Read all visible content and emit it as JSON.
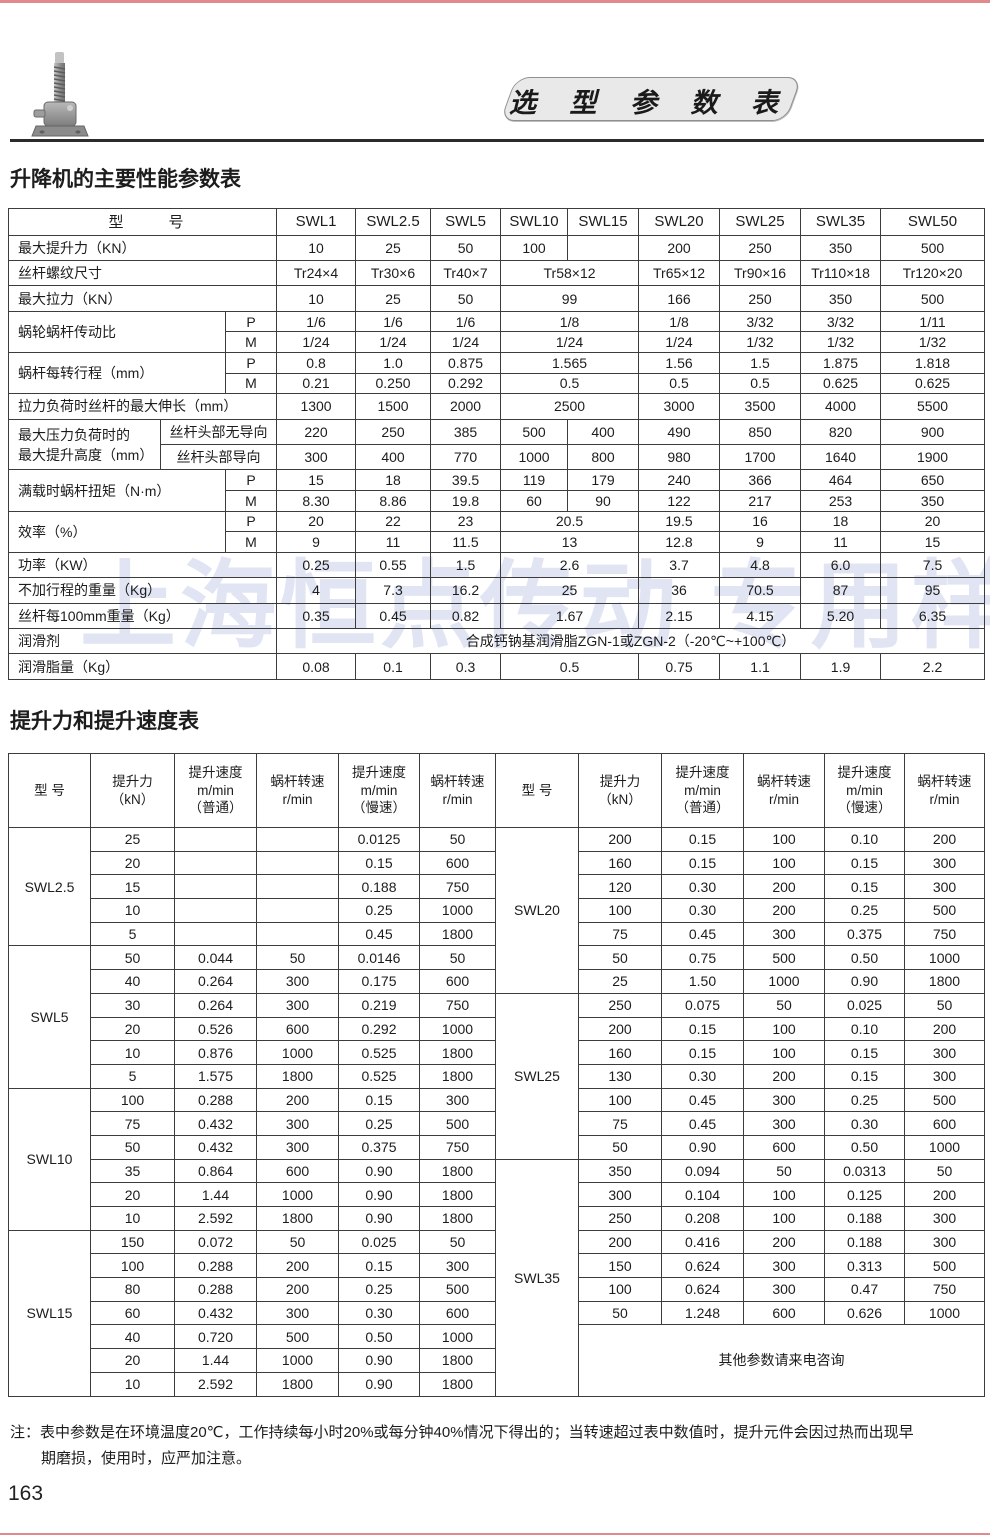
{
  "page": {
    "banner": "选 型 参 数 表",
    "watermark": "上海恒点传动 专用样本",
    "page_number": "163",
    "note": {
      "prefix": "注：",
      "lines": [
        "表中参数是在环境温度20℃，工作持续每小时20%或每分钟40%情况下得出的；当转速超过表中数值时，提升元件会因过热而出现早",
        "期磨损，使用时，应严加注意。"
      ]
    }
  },
  "table1": {
    "title": "升降机的主要性能参数表",
    "header_label": "型　　　号",
    "models": [
      "SWL1",
      "SWL2.5",
      "SWL5",
      "SWL10",
      "SWL15",
      "SWL20",
      "SWL25",
      "SWL35",
      "SWL50"
    ],
    "rows": [
      {
        "label": "最大提升力（KN）",
        "lc": 3,
        "cells": [
          "10",
          "25",
          "50",
          "100",
          "",
          "200",
          "250",
          "350",
          "500"
        ]
      },
      {
        "label": "丝杆螺纹尺寸",
        "lc": 3,
        "cells": [
          "Tr24×4",
          "Tr30×6",
          "Tr40×7",
          {
            "t": "Tr58×12",
            "c": 2
          },
          "Tr65×12",
          "Tr90×16",
          "Tr110×18",
          "Tr120×20"
        ]
      },
      {
        "label": "最大拉力（KN）",
        "lc": 3,
        "cells": [
          "10",
          "25",
          "50",
          {
            "t": "99",
            "c": 2
          },
          "166",
          "250",
          "350",
          "500"
        ]
      },
      {
        "label": "蜗轮蜗杆传动比",
        "lc": 2,
        "lr": 2,
        "sub": "P",
        "cells": [
          "1/6",
          "1/6",
          "1/6",
          {
            "t": "1/8",
            "c": 2
          },
          "1/8",
          "3/32",
          "3/32",
          "1/11"
        ]
      },
      {
        "sub": "M",
        "cells": [
          "1/24",
          "1/24",
          "1/24",
          {
            "t": "1/24",
            "c": 2
          },
          "1/24",
          "1/32",
          "1/32",
          "1/32"
        ]
      },
      {
        "label": "蜗杆每转行程（mm）",
        "lc": 2,
        "lr": 2,
        "sub": "P",
        "cells": [
          "0.8",
          "1.0",
          "0.875",
          {
            "t": "1.565",
            "c": 2
          },
          "1.56",
          "1.5",
          "1.875",
          "1.818"
        ]
      },
      {
        "sub": "M",
        "cells": [
          "0.21",
          "0.250",
          "0.292",
          {
            "t": "0.5",
            "c": 2
          },
          "0.5",
          "0.5",
          "0.625",
          "0.625"
        ]
      },
      {
        "label": "拉力负荷时丝杆的最大伸长（mm）",
        "lc": 3,
        "cells": [
          "1300",
          "1500",
          "2000",
          {
            "t": "2500",
            "c": 2
          },
          "3000",
          "3500",
          "4000",
          "5500"
        ]
      },
      {
        "label": "最大压力负荷时的\n最大提升高度（mm）",
        "lc": 1,
        "lr": 2,
        "sub": "丝杆头部无导向",
        "sc": 2,
        "cells": [
          "220",
          "250",
          "385",
          "500",
          "400",
          "490",
          "850",
          "820",
          "900"
        ]
      },
      {
        "sub": "丝杆头部导向",
        "sc": 2,
        "cells": [
          "300",
          "400",
          "770",
          "1000",
          "800",
          "980",
          "1700",
          "1640",
          "1900"
        ]
      },
      {
        "label": "满载时蜗杆扭矩（N·m）",
        "lc": 2,
        "lr": 2,
        "sub": "P",
        "cells": [
          "15",
          "18",
          "39.5",
          "119",
          "179",
          "240",
          "366",
          "464",
          "650"
        ]
      },
      {
        "sub": "M",
        "cells": [
          "8.30",
          "8.86",
          "19.8",
          "60",
          "90",
          "122",
          "217",
          "253",
          "350"
        ]
      },
      {
        "label": "效率（%）",
        "lc": 2,
        "lr": 2,
        "sub": "P",
        "cells": [
          "20",
          "22",
          "23",
          {
            "t": "20.5",
            "c": 2
          },
          "19.5",
          "16",
          "18",
          "20"
        ]
      },
      {
        "sub": "M",
        "cells": [
          "9",
          "11",
          "11.5",
          {
            "t": "13",
            "c": 2
          },
          "12.8",
          "9",
          "11",
          "15"
        ]
      },
      {
        "label": "功率（KW）",
        "lc": 3,
        "cells": [
          "0.25",
          "0.55",
          "1.5",
          {
            "t": "2.6",
            "c": 2
          },
          "3.7",
          "4.8",
          "6.0",
          "7.5"
        ]
      },
      {
        "label": "不加行程的重量（Kg）",
        "lc": 3,
        "cells": [
          "4",
          "7.3",
          "16.2",
          {
            "t": "25",
            "c": 2
          },
          "36",
          "70.5",
          "87",
          "95"
        ]
      },
      {
        "label": "丝杆每100mm重量（Kg）",
        "lc": 3,
        "cells": [
          "0.35",
          "0.45",
          "0.82",
          {
            "t": "1.67",
            "c": 2
          },
          "2.15",
          "4.15",
          "5.20",
          "6.35"
        ]
      },
      {
        "label": "润滑剂",
        "lc": 3,
        "cells": [
          {
            "t": "合成钙钠基润滑脂ZGN-1或ZGN-2（-20℃~+100℃）",
            "c": 9
          }
        ]
      },
      {
        "label": "润滑脂量（Kg）",
        "lc": 3,
        "cells": [
          "0.08",
          "0.1",
          "0.3",
          {
            "t": "0.5",
            "c": 2
          },
          "0.75",
          "1.1",
          "1.9",
          "2.2"
        ]
      }
    ]
  },
  "table2": {
    "title": "提升力和提升速度表",
    "columns": [
      "型 号",
      "提升力\n（kN）",
      "提升速度\nm/min\n（普通）",
      "蜗杆转速\nr/min",
      "提升速度\nm/min\n（慢速）",
      "蜗杆转速\nr/min"
    ],
    "total_rows": 24,
    "left_groups": [
      {
        "model": "SWL2.5",
        "rows": [
          [
            "25",
            "",
            "",
            "0.0125",
            "50"
          ],
          [
            "20",
            "",
            "",
            "0.15",
            "600"
          ],
          [
            "15",
            "",
            "",
            "0.188",
            "750"
          ],
          [
            "10",
            "",
            "",
            "0.25",
            "1000"
          ],
          [
            "5",
            "",
            "",
            "0.45",
            "1800"
          ]
        ]
      },
      {
        "model": "SWL5",
        "rows": [
          [
            "50",
            "0.044",
            "50",
            "0.0146",
            "50"
          ],
          [
            "40",
            "0.264",
            "300",
            "0.175",
            "600"
          ],
          [
            "30",
            "0.264",
            "300",
            "0.219",
            "750"
          ],
          [
            "20",
            "0.526",
            "600",
            "0.292",
            "1000"
          ],
          [
            "10",
            "0.876",
            "1000",
            "0.525",
            "1800"
          ],
          [
            "5",
            "1.575",
            "1800",
            "0.525",
            "1800"
          ]
        ]
      },
      {
        "model": "SWL10",
        "rows": [
          [
            "100",
            "0.288",
            "200",
            "0.15",
            "300"
          ],
          [
            "75",
            "0.432",
            "300",
            "0.25",
            "500"
          ],
          [
            "50",
            "0.432",
            "300",
            "0.375",
            "750"
          ],
          [
            "35",
            "0.864",
            "600",
            "0.90",
            "1800"
          ],
          [
            "20",
            "1.44",
            "1000",
            "0.90",
            "1800"
          ],
          [
            "10",
            "2.592",
            "1800",
            "0.90",
            "1800"
          ]
        ]
      },
      {
        "model": "SWL15",
        "rows": [
          [
            "150",
            "0.072",
            "50",
            "0.025",
            "50"
          ],
          [
            "100",
            "0.288",
            "200",
            "0.15",
            "300"
          ],
          [
            "80",
            "0.288",
            "200",
            "0.25",
            "500"
          ],
          [
            "60",
            "0.432",
            "300",
            "0.30",
            "600"
          ],
          [
            "40",
            "0.720",
            "500",
            "0.50",
            "1000"
          ],
          [
            "20",
            "1.44",
            "1000",
            "0.90",
            "1800"
          ],
          [
            "10",
            "2.592",
            "1800",
            "0.90",
            "1800"
          ]
        ]
      }
    ],
    "right_groups": [
      {
        "model": "SWL20",
        "rows": [
          [
            "200",
            "0.15",
            "100",
            "0.10",
            "200"
          ],
          [
            "160",
            "0.15",
            "100",
            "0.15",
            "300"
          ],
          [
            "120",
            "0.30",
            "200",
            "0.15",
            "300"
          ],
          [
            "100",
            "0.30",
            "200",
            "0.25",
            "500"
          ],
          [
            "75",
            "0.45",
            "300",
            "0.375",
            "750"
          ],
          [
            "50",
            "0.75",
            "500",
            "0.50",
            "1000"
          ],
          [
            "25",
            "1.50",
            "1000",
            "0.90",
            "1800"
          ]
        ]
      },
      {
        "model": "SWL25",
        "rows": [
          [
            "250",
            "0.075",
            "50",
            "0.025",
            "50"
          ],
          [
            "200",
            "0.15",
            "100",
            "0.10",
            "200"
          ],
          [
            "160",
            "0.15",
            "100",
            "0.15",
            "300"
          ],
          [
            "130",
            "0.30",
            "200",
            "0.15",
            "300"
          ],
          [
            "100",
            "0.45",
            "300",
            "0.25",
            "500"
          ],
          [
            "75",
            "0.45",
            "300",
            "0.30",
            "600"
          ],
          [
            "50",
            "0.90",
            "600",
            "0.50",
            "1000"
          ]
        ]
      },
      {
        "model": "SWL35",
        "span": 10,
        "note": "其他参数请来电咨询",
        "note_span": 3,
        "rows": [
          [
            "350",
            "0.094",
            "50",
            "0.0313",
            "50"
          ],
          [
            "300",
            "0.104",
            "100",
            "0.125",
            "200"
          ],
          [
            "250",
            "0.208",
            "100",
            "0.188",
            "300"
          ],
          [
            "200",
            "0.416",
            "200",
            "0.188",
            "300"
          ],
          [
            "150",
            "0.624",
            "300",
            "0.313",
            "500"
          ],
          [
            "100",
            "0.624",
            "300",
            "0.47",
            "750"
          ],
          [
            "50",
            "1.248",
            "600",
            "0.626",
            "1000"
          ]
        ]
      }
    ]
  }
}
